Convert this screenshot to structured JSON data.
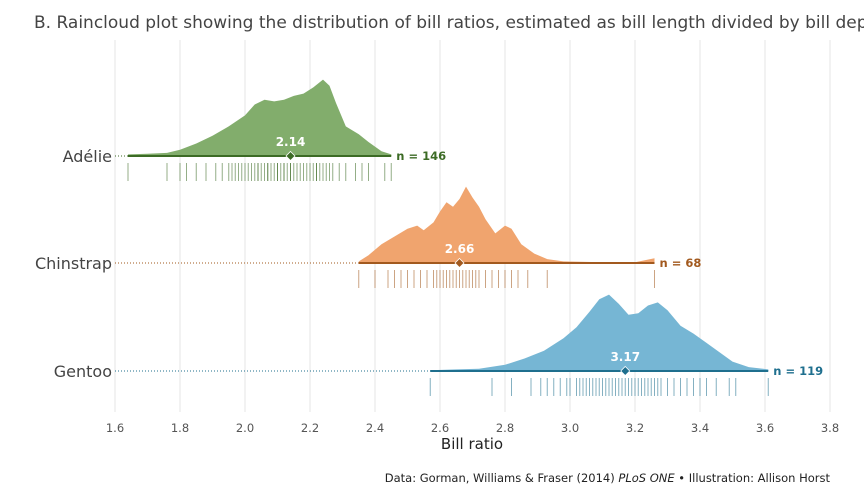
{
  "title": "B. Raincloud plot showing the distribution of bill ratios, estimated as bill length divided by bill depth.",
  "caption": {
    "prefix": "Data:  Gorman, Williams & Fraser (2014) ",
    "journal": "PLoS ONE",
    "suffix": " • Illustration:  Allison Horst"
  },
  "chart_data": {
    "type": "raincloud",
    "xlabel": "Bill ratio",
    "xlim": [
      1.6,
      3.8
    ],
    "xticks": [
      1.6,
      1.8,
      2.0,
      2.2,
      2.4,
      2.6,
      2.8,
      3.0,
      3.2,
      3.4,
      3.6,
      3.8
    ],
    "xtick_labels": [
      "1.6",
      "1.8",
      "2.0",
      "2.2",
      "2.4",
      "2.6",
      "2.8",
      "3.0",
      "3.2",
      "3.4",
      "3.6",
      "3.8"
    ],
    "grid": true,
    "series": [
      {
        "name": "Adélie",
        "median": 2.14,
        "median_label": "2.14",
        "n_label": "n = 146",
        "range": [
          1.64,
          2.45
        ],
        "fill": "#82ad6c",
        "line": "#3c6b25",
        "rug": "#3c6b25",
        "density": [
          [
            1.64,
            0.02
          ],
          [
            1.7,
            0.03
          ],
          [
            1.76,
            0.04
          ],
          [
            1.8,
            0.08
          ],
          [
            1.85,
            0.16
          ],
          [
            1.9,
            0.26
          ],
          [
            1.95,
            0.38
          ],
          [
            2.0,
            0.52
          ],
          [
            2.03,
            0.66
          ],
          [
            2.06,
            0.72
          ],
          [
            2.09,
            0.7
          ],
          [
            2.12,
            0.72
          ],
          [
            2.15,
            0.77
          ],
          [
            2.18,
            0.8
          ],
          [
            2.21,
            0.88
          ],
          [
            2.24,
            0.98
          ],
          [
            2.26,
            0.9
          ],
          [
            2.28,
            0.68
          ],
          [
            2.31,
            0.38
          ],
          [
            2.35,
            0.28
          ],
          [
            2.38,
            0.18
          ],
          [
            2.42,
            0.06
          ],
          [
            2.45,
            0.02
          ]
        ],
        "rug_x": [
          1.64,
          1.76,
          1.8,
          1.82,
          1.85,
          1.88,
          1.91,
          1.93,
          1.95,
          1.96,
          1.97,
          1.98,
          1.99,
          2.0,
          2.01,
          2.02,
          2.03,
          2.04,
          2.04,
          2.05,
          2.06,
          2.07,
          2.07,
          2.08,
          2.09,
          2.1,
          2.1,
          2.11,
          2.12,
          2.12,
          2.13,
          2.14,
          2.14,
          2.15,
          2.16,
          2.17,
          2.18,
          2.19,
          2.2,
          2.21,
          2.22,
          2.22,
          2.23,
          2.24,
          2.25,
          2.26,
          2.27,
          2.29,
          2.31,
          2.34,
          2.36,
          2.38,
          2.43,
          2.45
        ]
      },
      {
        "name": "Chinstrap",
        "median": 2.66,
        "median_label": "2.66",
        "n_label": "n = 68",
        "range": [
          2.35,
          3.26
        ],
        "fill": "#f0a46e",
        "line": "#a2591e",
        "rug": "#a2591e",
        "density": [
          [
            2.35,
            0.02
          ],
          [
            2.38,
            0.1
          ],
          [
            2.42,
            0.24
          ],
          [
            2.46,
            0.34
          ],
          [
            2.5,
            0.44
          ],
          [
            2.53,
            0.48
          ],
          [
            2.55,
            0.42
          ],
          [
            2.58,
            0.52
          ],
          [
            2.6,
            0.66
          ],
          [
            2.62,
            0.78
          ],
          [
            2.64,
            0.72
          ],
          [
            2.66,
            0.82
          ],
          [
            2.68,
            0.98
          ],
          [
            2.7,
            0.84
          ],
          [
            2.72,
            0.72
          ],
          [
            2.74,
            0.56
          ],
          [
            2.77,
            0.38
          ],
          [
            2.8,
            0.48
          ],
          [
            2.82,
            0.44
          ],
          [
            2.85,
            0.24
          ],
          [
            2.89,
            0.12
          ],
          [
            2.93,
            0.05
          ],
          [
            2.98,
            0.02
          ],
          [
            3.1,
            0.01
          ],
          [
            3.2,
            0.01
          ],
          [
            3.26,
            0.06
          ]
        ],
        "rug_x": [
          2.35,
          2.4,
          2.44,
          2.46,
          2.48,
          2.5,
          2.52,
          2.54,
          2.56,
          2.58,
          2.59,
          2.6,
          2.61,
          2.62,
          2.63,
          2.64,
          2.65,
          2.66,
          2.67,
          2.68,
          2.69,
          2.7,
          2.71,
          2.72,
          2.74,
          2.76,
          2.78,
          2.8,
          2.82,
          2.84,
          2.87,
          2.93,
          3.26
        ]
      },
      {
        "name": "Gentoo",
        "median": 3.17,
        "median_label": "3.17",
        "n_label": "n = 119",
        "range": [
          2.57,
          3.61
        ],
        "fill": "#76b6d4",
        "line": "#1f6f8e",
        "rug": "#1f6f8e",
        "density": [
          [
            2.57,
            0.01
          ],
          [
            2.65,
            0.02
          ],
          [
            2.72,
            0.03
          ],
          [
            2.8,
            0.08
          ],
          [
            2.86,
            0.16
          ],
          [
            2.92,
            0.26
          ],
          [
            2.98,
            0.42
          ],
          [
            3.02,
            0.56
          ],
          [
            3.06,
            0.76
          ],
          [
            3.09,
            0.92
          ],
          [
            3.12,
            0.98
          ],
          [
            3.15,
            0.86
          ],
          [
            3.18,
            0.72
          ],
          [
            3.21,
            0.74
          ],
          [
            3.24,
            0.84
          ],
          [
            3.27,
            0.88
          ],
          [
            3.3,
            0.78
          ],
          [
            3.34,
            0.58
          ],
          [
            3.38,
            0.48
          ],
          [
            3.42,
            0.36
          ],
          [
            3.46,
            0.24
          ],
          [
            3.5,
            0.12
          ],
          [
            3.55,
            0.05
          ],
          [
            3.61,
            0.02
          ]
        ],
        "rug_x": [
          2.57,
          2.76,
          2.82,
          2.88,
          2.91,
          2.93,
          2.95,
          2.97,
          2.99,
          3.0,
          3.02,
          3.03,
          3.04,
          3.05,
          3.06,
          3.07,
          3.08,
          3.09,
          3.1,
          3.11,
          3.12,
          3.13,
          3.14,
          3.15,
          3.16,
          3.17,
          3.18,
          3.19,
          3.2,
          3.21,
          3.22,
          3.23,
          3.24,
          3.25,
          3.26,
          3.27,
          3.28,
          3.3,
          3.32,
          3.34,
          3.36,
          3.38,
          3.4,
          3.42,
          3.45,
          3.49,
          3.51,
          3.61
        ]
      }
    ]
  }
}
